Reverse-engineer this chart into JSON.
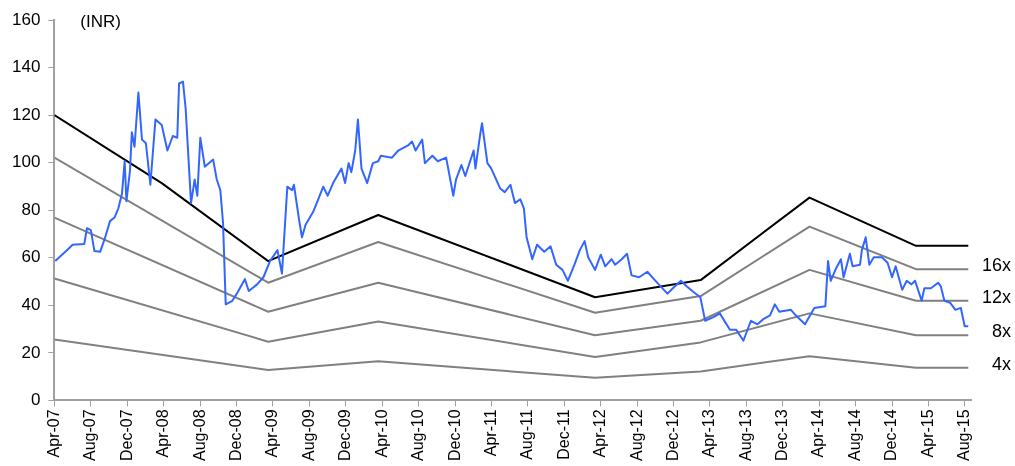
{
  "chart_data": {
    "type": "line",
    "ylabel": "(INR)",
    "marker": "none",
    "line_style": "solid",
    "legend": false,
    "xlim": [
      "2007-04-01",
      "2015-08-22"
    ],
    "ylim": [
      0,
      160
    ],
    "yticks": [
      0,
      20,
      40,
      60,
      80,
      100,
      120,
      140,
      160
    ],
    "xticks": [
      {
        "value": "2007-04-01",
        "label": "Apr-07"
      },
      {
        "value": "2007-08-01",
        "label": "Aug-07"
      },
      {
        "value": "2007-12-01",
        "label": "Dec-07"
      },
      {
        "value": "2008-04-01",
        "label": "Apr-08"
      },
      {
        "value": "2008-08-01",
        "label": "Aug-08"
      },
      {
        "value": "2008-12-01",
        "label": "Dec-08"
      },
      {
        "value": "2009-04-01",
        "label": "Apr-09"
      },
      {
        "value": "2009-08-01",
        "label": "Aug-09"
      },
      {
        "value": "2009-12-01",
        "label": "Dec-09"
      },
      {
        "value": "2010-04-01",
        "label": "Apr-10"
      },
      {
        "value": "2010-08-01",
        "label": "Aug-10"
      },
      {
        "value": "2010-12-01",
        "label": "Dec-10"
      },
      {
        "value": "2011-04-01",
        "label": "Apr-11"
      },
      {
        "value": "2011-08-01",
        "label": "Aug-11"
      },
      {
        "value": "2011-12-01",
        "label": "Dec-11"
      },
      {
        "value": "2012-04-01",
        "label": "Apr-12"
      },
      {
        "value": "2012-08-01",
        "label": "Aug-12"
      },
      {
        "value": "2012-12-01",
        "label": "Dec-12"
      },
      {
        "value": "2013-04-01",
        "label": "Apr-13"
      },
      {
        "value": "2013-08-01",
        "label": "Aug-13"
      },
      {
        "value": "2013-12-01",
        "label": "Dec-13"
      },
      {
        "value": "2014-04-01",
        "label": "Apr-14"
      },
      {
        "value": "2014-08-01",
        "label": "Aug-14"
      },
      {
        "value": "2014-12-01",
        "label": "Dec-14"
      },
      {
        "value": "2015-04-01",
        "label": "Apr-15"
      },
      {
        "value": "2015-08-01",
        "label": "Aug-15"
      }
    ],
    "series": [
      {
        "color": "#3366ff",
        "x": [
          "2007-04-04",
          "2007-05-13",
          "2007-06-01",
          "2007-07-10",
          "2007-07-19",
          "2007-08-01",
          "2007-08-13",
          "2007-09-01",
          "2007-09-16",
          "2007-10-04",
          "2007-10-19",
          "2007-11-01",
          "2007-11-13",
          "2007-11-22",
          "2007-11-28",
          "2007-12-10",
          "2007-12-16",
          "2007-12-25",
          "2008-01-07",
          "2008-01-19",
          "2008-02-01",
          "2008-02-16",
          "2008-03-04",
          "2008-03-25",
          "2008-04-13",
          "2008-05-01",
          "2008-05-16",
          "2008-05-22",
          "2008-06-04",
          "2008-06-13",
          "2008-07-01",
          "2008-07-13",
          "2008-07-22",
          "2008-08-01",
          "2008-08-16",
          "2008-09-13",
          "2008-09-25",
          "2008-10-07",
          "2008-10-16",
          "2008-10-25",
          "2008-11-16",
          "2008-12-01",
          "2008-12-28",
          "2009-01-10",
          "2009-02-07",
          "2009-02-28",
          "2009-03-22",
          "2009-04-16",
          "2009-05-01",
          "2009-05-19",
          "2009-06-04",
          "2009-06-10",
          "2009-06-28",
          "2009-07-07",
          "2009-07-19",
          "2009-08-13",
          "2009-08-28",
          "2009-09-16",
          "2009-10-01",
          "2009-10-19",
          "2009-11-16",
          "2009-11-28",
          "2009-12-10",
          "2009-12-19",
          "2010-01-01",
          "2010-01-10",
          "2010-01-22",
          "2010-02-10",
          "2010-03-01",
          "2010-03-19",
          "2010-03-28",
          "2010-05-04",
          "2010-05-25",
          "2010-06-28",
          "2010-07-10",
          "2010-07-22",
          "2010-08-13",
          "2010-08-22",
          "2010-09-16",
          "2010-10-04",
          "2010-11-01",
          "2010-11-25",
          "2010-12-04",
          "2010-12-22",
          "2011-01-04",
          "2011-02-01",
          "2011-02-07",
          "2011-02-22",
          "2011-03-01",
          "2011-03-19",
          "2011-04-01",
          "2011-05-01",
          "2011-05-16",
          "2011-06-04",
          "2011-06-19",
          "2011-07-07",
          "2011-07-19",
          "2011-07-28",
          "2011-08-16",
          "2011-09-01",
          "2011-09-25",
          "2011-10-16",
          "2011-11-04",
          "2011-11-25",
          "2011-12-13",
          "2012-01-04",
          "2012-01-22",
          "2012-02-07",
          "2012-02-19",
          "2012-03-13",
          "2012-04-01",
          "2012-04-16",
          "2012-05-07",
          "2012-05-19",
          "2012-06-10",
          "2012-06-28",
          "2012-07-13",
          "2012-08-07",
          "2012-09-04",
          "2012-10-01",
          "2012-11-10",
          "2012-11-28",
          "2012-12-25",
          "2013-01-13",
          "2013-02-04",
          "2013-02-28",
          "2013-03-16",
          "2013-04-13",
          "2013-05-04",
          "2013-06-07",
          "2013-06-28",
          "2013-07-22",
          "2013-08-16",
          "2013-09-07",
          "2013-09-28",
          "2013-10-19",
          "2013-11-04",
          "2013-11-19",
          "2013-12-28",
          "2014-01-13",
          "2014-02-13",
          "2014-03-16",
          "2014-04-22",
          "2014-05-01",
          "2014-05-10",
          "2014-05-28",
          "2014-06-13",
          "2014-06-22",
          "2014-07-13",
          "2014-07-22",
          "2014-08-16",
          "2014-08-22",
          "2014-09-04",
          "2014-09-16",
          "2014-10-01",
          "2014-10-28",
          "2014-11-16",
          "2014-12-01",
          "2014-12-13",
          "2015-01-04",
          "2015-01-19",
          "2015-02-04",
          "2015-02-16",
          "2015-03-10",
          "2015-03-19",
          "2015-04-10",
          "2015-05-04",
          "2015-05-13",
          "2015-05-25",
          "2015-06-13",
          "2015-07-01",
          "2015-07-19",
          "2015-08-01",
          "2015-08-13"
        ],
        "values": [
          58.6,
          63.2,
          65.5,
          65.8,
          72.4,
          71.6,
          62.8,
          62.5,
          67.8,
          75.4,
          76.9,
          80.8,
          86.9,
          100.6,
          83.8,
          96.8,
          112.8,
          106.7,
          129.5,
          109.7,
          108.2,
          90.7,
          118.1,
          115.8,
          105.1,
          111.2,
          110.5,
          133.3,
          134.1,
          122.7,
          83,
          92.9,
          86.1,
          110.5,
          98.3,
          101.3,
          92.9,
          88.4,
          74.7,
          40.4,
          41.9,
          44.9,
          51,
          46,
          48.8,
          51.8,
          58.6,
          63.2,
          53.3,
          89.9,
          88.4,
          90.7,
          75.4,
          68.6,
          73.9,
          79.2,
          83.8,
          89.9,
          86.1,
          91.4,
          97.5,
          91.4,
          99.8,
          96,
          105.1,
          118.1,
          97.5,
          91.4,
          99.8,
          100.6,
          102.9,
          102.1,
          105.1,
          107.4,
          108.9,
          105.1,
          109.7,
          99.8,
          102.9,
          100.6,
          102.1,
          86.1,
          92.9,
          99,
          94.4,
          105.1,
          97.5,
          111.2,
          116.6,
          99.8,
          97.5,
          89.1,
          87.6,
          90.7,
          83,
          84.6,
          80.8,
          68.6,
          59.4,
          65.5,
          62.5,
          64.8,
          57.1,
          54.9,
          50.3,
          57.1,
          63.2,
          67,
          60.2,
          54.9,
          61.3,
          56.4,
          59.4,
          57.1,
          59.4,
          61.7,
          52.6,
          51.8,
          54.1,
          50.3,
          44.9,
          47.2,
          50.3,
          48,
          45.7,
          43.4,
          33.5,
          35,
          36.6,
          29.7,
          29.7,
          25.1,
          33.5,
          32,
          34.3,
          35.8,
          40.4,
          37.3,
          38.1,
          35.8,
          32,
          38.9,
          39.6,
          58.6,
          50.3,
          55.6,
          59.4,
          51.8,
          61.7,
          56.4,
          57.1,
          63.2,
          68.6,
          57.1,
          60.2,
          60.2,
          57.9,
          51.8,
          56.4,
          46.5,
          50.3,
          48.8,
          50.3,
          41.9,
          47.2,
          47.2,
          49.5,
          48,
          41.9,
          41.1,
          38.1,
          38.9,
          31.2,
          31.2
        ]
      },
      {
        "color": "#000000",
        "x": [
          "2007-04-01",
          "2008-03-25",
          "2009-03-16",
          "2010-03-19",
          "2012-03-13",
          "2013-03-01",
          "2014-02-28",
          "2015-02-19",
          "2015-08-13"
        ],
        "values": [
          120,
          91.4,
          58.6,
          78,
          43.4,
          50.6,
          85.3,
          65,
          65
        ]
      },
      {
        "name": "16x",
        "color": "#808080",
        "x": [
          "2007-04-01",
          "2009-03-16",
          "2010-03-19",
          "2012-03-13",
          "2013-03-01",
          "2014-02-28",
          "2015-02-19",
          "2015-08-13"
        ],
        "values": [
          102.1,
          49.5,
          66.6,
          36.9,
          43.9,
          73.1,
          55.2,
          55.2
        ]
      },
      {
        "name": "12x",
        "color": "#808080",
        "x": [
          "2007-04-01",
          "2009-03-16",
          "2010-03-19",
          "2012-03-13",
          "2013-03-01",
          "2014-02-28",
          "2015-02-19",
          "2015-08-13"
        ],
        "values": [
          76.9,
          37.3,
          49.5,
          27.4,
          33.5,
          54.9,
          41.9,
          41.9
        ]
      },
      {
        "name": "8x",
        "color": "#808080",
        "x": [
          "2007-04-01",
          "2009-03-16",
          "2010-03-19",
          "2012-03-13",
          "2013-03-01",
          "2014-02-28",
          "2015-02-19",
          "2015-08-13"
        ],
        "values": [
          51.3,
          24.7,
          33.2,
          18.3,
          24.4,
          36.6,
          27.4,
          27.4
        ]
      },
      {
        "name": "4x",
        "color": "#808080",
        "x": [
          "2007-04-01",
          "2009-03-16",
          "2010-03-19",
          "2012-03-13",
          "2013-03-01",
          "2014-02-28",
          "2015-02-19",
          "2015-08-13"
        ],
        "values": [
          25.6,
          12.8,
          16.5,
          9.5,
          12.2,
          18.6,
          13.7,
          13.7
        ]
      }
    ]
  }
}
